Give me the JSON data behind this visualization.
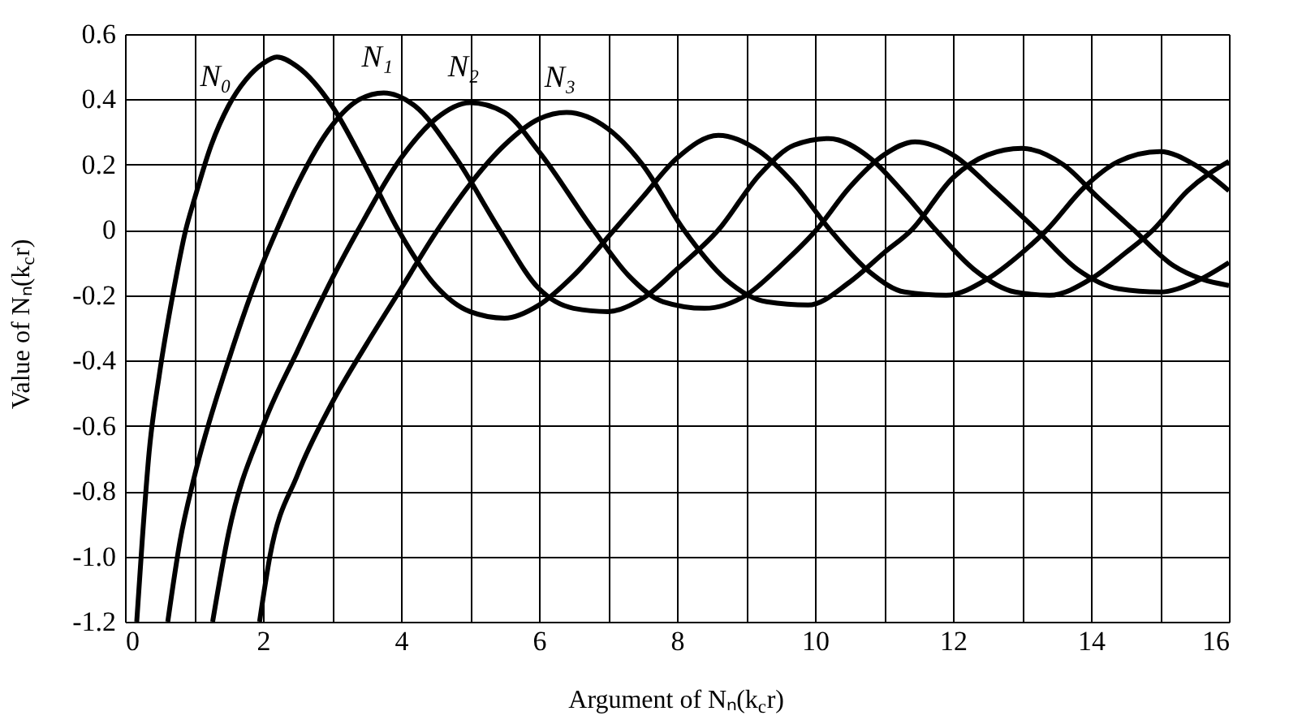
{
  "chart_data": {
    "type": "line",
    "xlabel": "Argument of Nₙ(k$_{c}$r)",
    "ylabel": "Value of Nₙ(k$_{c}$r)",
    "xlim": [
      0,
      16
    ],
    "ylim": [
      -1.2,
      0.6
    ],
    "xticks": [
      0,
      {
        "value": 1,
        "label": null
      },
      2,
      {
        "value": 3,
        "label": null
      },
      4,
      {
        "value": 5,
        "label": null
      },
      6,
      {
        "value": 7,
        "label": null
      },
      8,
      {
        "value": 9,
        "label": null
      },
      10,
      {
        "value": 11,
        "label": null
      },
      12,
      {
        "value": 13,
        "label": null
      },
      14,
      {
        "value": 15,
        "label": null
      },
      16
    ],
    "yticks": [
      -1.2,
      {
        "value": -1.0,
        "label": "-1.0"
      },
      -0.8,
      -0.6,
      -0.4,
      -0.2,
      0,
      0.2,
      0.4,
      0.6
    ],
    "grid": true,
    "marker": "none",
    "line_style": "solid",
    "series": [
      {
        "name": "N₀",
        "color": "#000000",
        "x": [
          0.17,
          0.25,
          0.35,
          0.5,
          0.7,
          0.88,
          1.0,
          1.25,
          1.5,
          1.75,
          2.0,
          2.2,
          2.5,
          3.0,
          3.5,
          3.96,
          4.5,
          5.0,
          5.5,
          6.0,
          6.5,
          7.09,
          7.5,
          8.0,
          8.6,
          9.2,
          9.7,
          10.22,
          10.8,
          11.3,
          11.9,
          12.5,
          13.0,
          13.36,
          13.9,
          14.4,
          15.0,
          15.5,
          16.0
        ],
        "values": [
          -1.2,
          -0.95,
          -0.68,
          -0.44,
          -0.19,
          0,
          0.09,
          0.26,
          0.38,
          0.46,
          0.51,
          0.53,
          0.5,
          0.38,
          0.19,
          0,
          -0.17,
          -0.25,
          -0.27,
          -0.23,
          -0.14,
          0,
          0.1,
          0.22,
          0.29,
          0.24,
          0.14,
          0,
          -0.13,
          -0.19,
          -0.2,
          -0.15,
          -0.07,
          0,
          0.13,
          0.21,
          0.24,
          0.2,
          0.12
        ]
      },
      {
        "name": "N₁",
        "color": "#000000",
        "x": [
          0.62,
          0.8,
          1.0,
          1.5,
          2.0,
          2.2,
          2.5,
          3.0,
          3.4,
          3.75,
          4.2,
          4.8,
          5.43,
          6.0,
          6.5,
          7.0,
          7.5,
          8.0,
          8.6,
          9.2,
          9.7,
          10.2,
          10.8,
          11.3,
          11.75,
          12.3,
          12.9,
          13.4,
          14.0,
          14.5,
          14.9,
          15.4,
          16.0
        ],
        "values": [
          -1.2,
          -0.95,
          -0.76,
          -0.4,
          -0.1,
          0,
          0.14,
          0.32,
          0.4,
          0.42,
          0.38,
          0.22,
          0,
          -0.18,
          -0.24,
          -0.25,
          -0.21,
          -0.12,
          0,
          0.17,
          0.26,
          0.28,
          0.22,
          0.11,
          0,
          -0.12,
          -0.19,
          -0.2,
          -0.15,
          -0.07,
          0,
          0.12,
          0.21
        ]
      },
      {
        "name": "N₂",
        "color": "#000000",
        "x": [
          1.27,
          1.5,
          2.0,
          2.5,
          3.0,
          3.38,
          4.0,
          4.5,
          5.0,
          5.5,
          6.0,
          6.79,
          7.3,
          7.8,
          8.4,
          9.0,
          9.5,
          10.02,
          10.5,
          11.0,
          11.45,
          12.0,
          12.6,
          13.21,
          13.8,
          14.4,
          15.0,
          15.5,
          16.0
        ],
        "values": [
          -1.2,
          -0.93,
          -0.6,
          -0.37,
          -0.15,
          0,
          0.22,
          0.34,
          0.39,
          0.36,
          0.24,
          0,
          -0.14,
          -0.22,
          -0.24,
          -0.2,
          -0.11,
          0,
          0.13,
          0.23,
          0.27,
          0.23,
          0.12,
          0,
          -0.12,
          -0.18,
          -0.19,
          -0.16,
          -0.1
        ]
      },
      {
        "name": "N₃",
        "color": "#000000",
        "x": [
          1.95,
          2.1,
          2.5,
          3.0,
          3.5,
          4.0,
          4.53,
          5.0,
          5.5,
          6.0,
          6.4,
          7.0,
          7.5,
          8.1,
          8.7,
          9.3,
          9.9,
          10.5,
          11.0,
          11.4,
          12.0,
          12.5,
          13.0,
          13.6,
          14.1,
          14.62,
          15.2,
          15.6,
          16.0
        ],
        "values": [
          -1.2,
          -1.0,
          -0.75,
          -0.53,
          -0.35,
          -0.18,
          0,
          0.14,
          0.26,
          0.34,
          0.36,
          0.31,
          0.2,
          0,
          -0.15,
          -0.22,
          -0.23,
          -0.16,
          -0.07,
          0,
          0.16,
          0.23,
          0.25,
          0.2,
          0.1,
          0,
          -0.11,
          -0.15,
          -0.17
        ]
      }
    ]
  }
}
